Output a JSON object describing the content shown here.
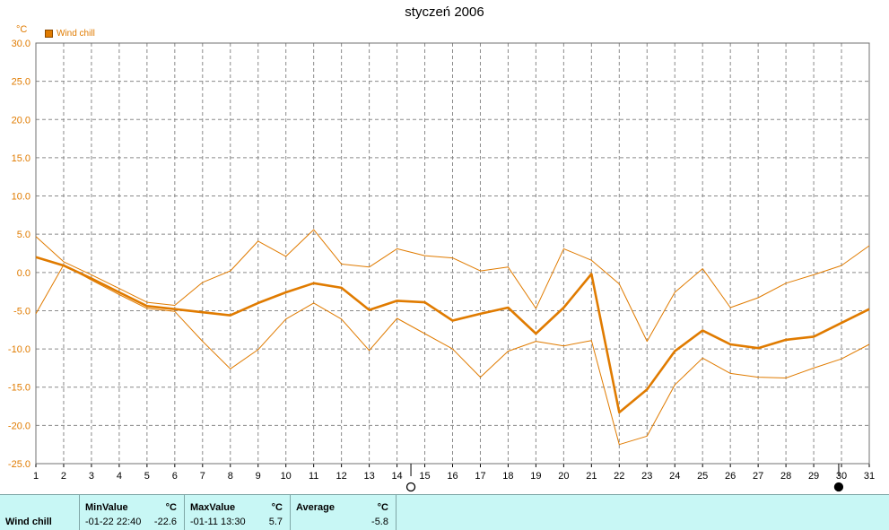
{
  "chart_data": {
    "type": "line",
    "title": "styczeń 2006",
    "ylabel": "°C",
    "ylim": [
      -25,
      30
    ],
    "yticks": [
      "30.0",
      "25.0",
      "20.0",
      "15.0",
      "10.0",
      "5.0",
      "0.0",
      "-5.0",
      "-10.0",
      "-15.0",
      "-20.0",
      "-25.0"
    ],
    "x": [
      1,
      2,
      3,
      4,
      5,
      6,
      7,
      8,
      9,
      10,
      11,
      12,
      13,
      14,
      15,
      16,
      17,
      18,
      19,
      20,
      21,
      22,
      23,
      24,
      25,
      26,
      27,
      28,
      29,
      30,
      31
    ],
    "grid": true,
    "legend": {
      "position": "top-left",
      "entries": [
        "Wind chill"
      ]
    },
    "series": [
      {
        "name": "Wind chill",
        "role": "average",
        "color": "#e07b00",
        "values": [
          2.0,
          0.9,
          -0.8,
          -2.6,
          -4.4,
          -4.8,
          -5.2,
          -5.6,
          -4.0,
          -2.6,
          -1.4,
          -2.0,
          -4.9,
          -3.7,
          -3.9,
          -6.3,
          -5.4,
          -4.6,
          -8.0,
          -4.6,
          -0.2,
          -18.3,
          -15.3,
          -10.3,
          -7.6,
          -9.4,
          -9.9,
          -8.8,
          -8.4,
          -6.6,
          -4.8
        ]
      },
      {
        "role": "max",
        "color": "#e07b00",
        "values": [
          4.7,
          1.4,
          -0.3,
          -2.1,
          -3.9,
          -4.3,
          -1.3,
          0.2,
          4.1,
          2.1,
          5.6,
          1.1,
          0.7,
          3.1,
          2.2,
          1.9,
          0.2,
          0.7,
          -4.7,
          3.1,
          1.6,
          -1.5,
          -9.0,
          -2.6,
          0.5,
          -4.6,
          -3.3,
          -1.4,
          -0.3,
          0.9,
          3.5
        ]
      },
      {
        "role": "min",
        "color": "#e07b00",
        "values": [
          -5.4,
          1.0,
          -1.0,
          -2.9,
          -4.7,
          -5.1,
          -9.0,
          -12.6,
          -10.1,
          -6.1,
          -4.0,
          -6.1,
          -10.2,
          -6.0,
          -8.0,
          -10.0,
          -13.7,
          -10.3,
          -9.0,
          -9.6,
          -8.9,
          -22.5,
          -21.4,
          -14.7,
          -11.2,
          -13.2,
          -13.7,
          -13.8,
          -12.5,
          -11.3,
          -9.4
        ]
      }
    ],
    "moon_markers": [
      {
        "x": 14.5,
        "phase": "full-moon"
      },
      {
        "x": 29.9,
        "phase": "new-moon"
      }
    ]
  },
  "unit": "°C",
  "table": {
    "series_label": "Wind chill",
    "min": {
      "header": "MinValue",
      "unit": "°C",
      "time": "-01-22  22:40",
      "value": "-22.6"
    },
    "max": {
      "header": "MaxValue",
      "unit": "°C",
      "time": "-01-11  13:30",
      "value": "5.7"
    },
    "avg": {
      "header": "Average",
      "unit": "°C",
      "value": "-5.8"
    }
  }
}
